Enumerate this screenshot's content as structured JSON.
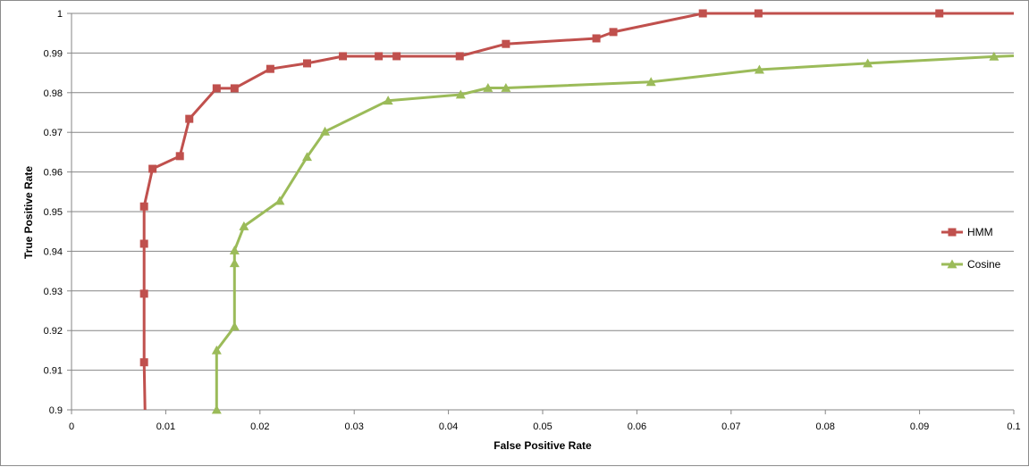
{
  "chart_data": {
    "type": "line",
    "title": "",
    "xlabel": "False Positive Rate",
    "ylabel": "True Positive Rate",
    "xlim": [
      0,
      0.1
    ],
    "ylim": [
      0.9,
      1.0
    ],
    "x_ticks": [
      0,
      0.01,
      0.02,
      0.03,
      0.04,
      0.05,
      0.06,
      0.07,
      0.08,
      0.09,
      0.1
    ],
    "x_tick_labels": [
      "0",
      "0.01",
      "0.02",
      "0.03",
      "0.04",
      "0.05",
      "0.06",
      "0.07",
      "0.08",
      "0.09",
      "0.1"
    ],
    "y_ticks": [
      0.9,
      0.91,
      0.92,
      0.93,
      0.94,
      0.95,
      0.96,
      0.97,
      0.98,
      0.99,
      1.0
    ],
    "y_tick_labels": [
      "0.9",
      "0.91",
      "0.92",
      "0.93",
      "0.94",
      "0.95",
      "0.96",
      "0.97",
      "0.98",
      "0.99",
      "1"
    ],
    "grid": "horizontal",
    "legend_position": "right",
    "series": [
      {
        "name": "HMM",
        "color": "#c0504d",
        "marker": "square",
        "points": [
          {
            "x": 0.0078,
            "y": 0.9,
            "marker": false
          },
          {
            "x": 0.0077,
            "y": 0.912
          },
          {
            "x": 0.0077,
            "y": 0.9293
          },
          {
            "x": 0.0077,
            "y": 0.9419
          },
          {
            "x": 0.0077,
            "y": 0.9513
          },
          {
            "x": 0.0086,
            "y": 0.9608
          },
          {
            "x": 0.0115,
            "y": 0.964
          },
          {
            "x": 0.0125,
            "y": 0.9734
          },
          {
            "x": 0.0154,
            "y": 0.9811
          },
          {
            "x": 0.0173,
            "y": 0.9811
          },
          {
            "x": 0.0211,
            "y": 0.986
          },
          {
            "x": 0.025,
            "y": 0.9874
          },
          {
            "x": 0.0288,
            "y": 0.9892
          },
          {
            "x": 0.0326,
            "y": 0.9892
          },
          {
            "x": 0.0345,
            "y": 0.9892
          },
          {
            "x": 0.0412,
            "y": 0.9892
          },
          {
            "x": 0.0461,
            "y": 0.9923
          },
          {
            "x": 0.0557,
            "y": 0.9937
          },
          {
            "x": 0.0575,
            "y": 0.9953
          },
          {
            "x": 0.067,
            "y": 1.0
          },
          {
            "x": 0.0729,
            "y": 1.0
          },
          {
            "x": 0.0921,
            "y": 1.0
          },
          {
            "x": 0.1,
            "y": 1.0,
            "marker": false
          }
        ]
      },
      {
        "name": "Cosine",
        "color": "#9bbb59",
        "marker": "triangle",
        "points": [
          {
            "x": 0.0154,
            "y": 0.9
          },
          {
            "x": 0.0154,
            "y": 0.915
          },
          {
            "x": 0.0173,
            "y": 0.921
          },
          {
            "x": 0.0173,
            "y": 0.937
          },
          {
            "x": 0.0173,
            "y": 0.9402
          },
          {
            "x": 0.0183,
            "y": 0.9463
          },
          {
            "x": 0.0221,
            "y": 0.9527
          },
          {
            "x": 0.025,
            "y": 0.9638
          },
          {
            "x": 0.0269,
            "y": 0.9702
          },
          {
            "x": 0.0336,
            "y": 0.978
          },
          {
            "x": 0.0413,
            "y": 0.9795
          },
          {
            "x": 0.0442,
            "y": 0.9812
          },
          {
            "x": 0.0461,
            "y": 0.9812
          },
          {
            "x": 0.0615,
            "y": 0.9827
          },
          {
            "x": 0.073,
            "y": 0.9858
          },
          {
            "x": 0.0845,
            "y": 0.9874
          },
          {
            "x": 0.0979,
            "y": 0.9891
          },
          {
            "x": 0.1,
            "y": 0.9893,
            "marker": false
          }
        ]
      }
    ]
  }
}
